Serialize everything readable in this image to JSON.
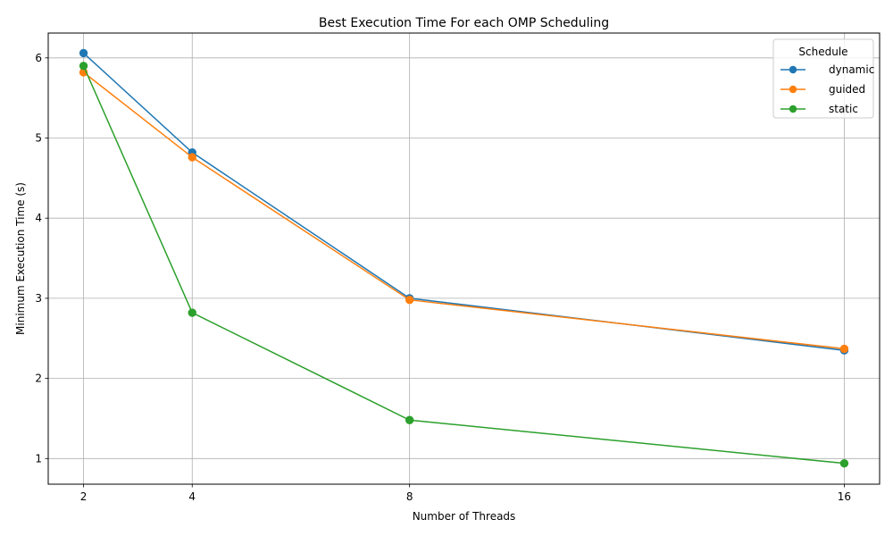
{
  "chart_data": {
    "type": "line",
    "title": "Best Execution Time For each OMP Scheduling",
    "xlabel": "Number of Threads",
    "ylabel": "Minimum Execution Time (s)",
    "x": [
      2,
      4,
      8,
      16
    ],
    "x_ticks": [
      "2",
      "4",
      "8",
      "16"
    ],
    "y_ticks": [
      "1",
      "2",
      "3",
      "4",
      "5",
      "6"
    ],
    "xlim": [
      1.35,
      16.65
    ],
    "ylim": [
      0.68,
      6.31
    ],
    "grid": true,
    "legend": {
      "title": "Schedule",
      "placement": "top-right"
    },
    "series": [
      {
        "name": "dynamic",
        "color": "#1f77b4",
        "values": [
          6.06,
          4.82,
          3.0,
          2.35
        ]
      },
      {
        "name": "guided",
        "color": "#ff7f0e",
        "values": [
          5.82,
          4.76,
          2.98,
          2.37
        ]
      },
      {
        "name": "static",
        "color": "#2ca02c",
        "values": [
          5.9,
          2.82,
          1.48,
          0.94
        ]
      }
    ]
  }
}
